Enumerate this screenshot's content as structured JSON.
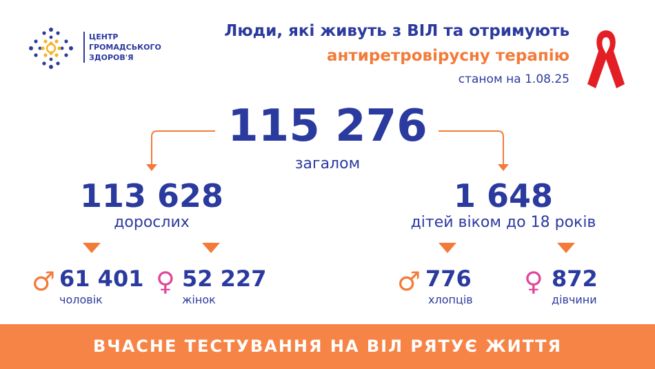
{
  "logo": {
    "line1": "ЦЕНТР",
    "line2": "ГРОМАДСЬКОГО",
    "line3": "ЗДОРОВ'Я"
  },
  "title": {
    "line1": "Люди, які живуть з ВІЛ та отримують",
    "line2": "антиретровірусну терапію",
    "date": "станом на 1.08.25"
  },
  "total": {
    "value": "115 276",
    "label": "загалом"
  },
  "adults": {
    "value": "113 628",
    "label": "дорослих",
    "men": {
      "value": "61 401",
      "label": "чоловік"
    },
    "women": {
      "value": "52 227",
      "label": "жінок"
    }
  },
  "children": {
    "value": "1 648",
    "label": "дітей віком до 18 років",
    "boys": {
      "value": "776",
      "label": "хлопців"
    },
    "girls": {
      "value": "872",
      "label": "дівчини"
    }
  },
  "symbols": {
    "male": "♂",
    "female": "♀"
  },
  "banner": "ВЧАСНЕ ТЕСТУВАННЯ НА ВІЛ РЯТУЄ ЖИТТЯ",
  "colors": {
    "blue": "#2b3a9e",
    "orange": "#f37b3a",
    "banner": "#f68446",
    "pink": "#e0469a",
    "ribbon": "#e31e24"
  }
}
